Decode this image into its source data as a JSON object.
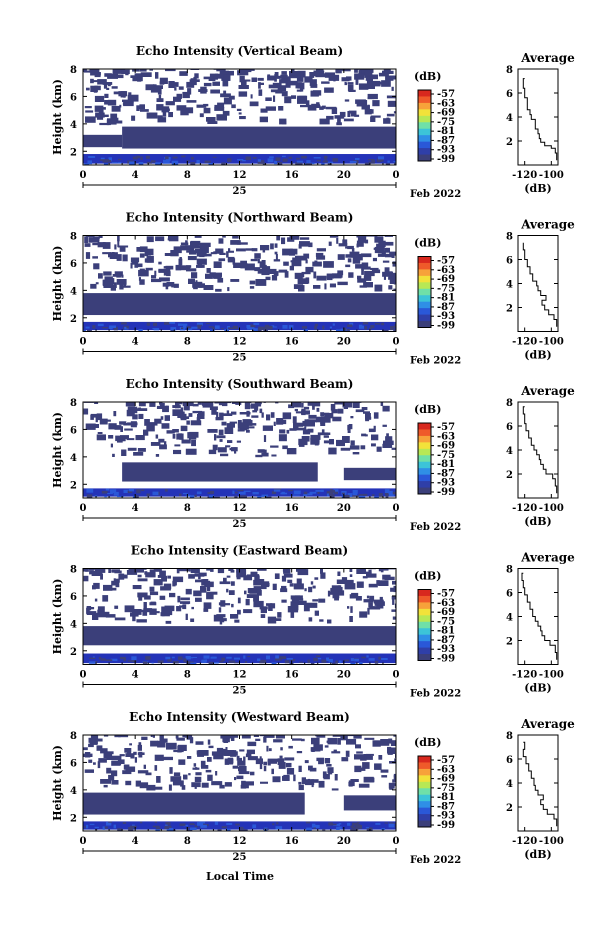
{
  "colors": {
    "background": "#ffffff",
    "echo": "#3b3f7a",
    "echo_strong": "#2433b8",
    "colorbar": [
      "#3b3f7a",
      "#2f3fa8",
      "#2a58d8",
      "#2f8fe6",
      "#3cc4d8",
      "#6fe0a8",
      "#b8e855",
      "#f2e23a",
      "#f7a23a",
      "#ef5a2a",
      "#d8281e"
    ]
  },
  "colorbar": {
    "unit": "(dB)",
    "ticks": [
      "-57",
      "-63",
      "-69",
      "-75",
      "-81",
      "-87",
      "-93",
      "-99"
    ]
  },
  "date_label": "Feb 2022",
  "day_label": "25",
  "xlabel": "Local Time",
  "chart_data": [
    {
      "type": "heatmap",
      "title": "Echo Intensity (Vertical Beam)",
      "ylabel": "Height (km)",
      "xlim": [
        0,
        24
      ],
      "ylim": [
        1,
        8
      ],
      "x_ticks": [
        "0",
        "4",
        "8",
        "12",
        "16",
        "20",
        "0"
      ],
      "y_ticks": [
        "2",
        "4",
        "6",
        "8"
      ],
      "layers": [
        {
          "x0": 0,
          "x1": 24,
          "y0": 1.1,
          "y1": 1.8,
          "level": "strong"
        },
        {
          "x0": 3,
          "x1": 24,
          "y0": 2.2,
          "y1": 3.8,
          "level": "weak"
        },
        {
          "x0": 0,
          "x1": 3,
          "y0": 2.3,
          "y1": 3.2,
          "level": "weak"
        }
      ],
      "profile": {
        "title": "Average",
        "xlabel": "(dB)",
        "xlim": [
          -125,
          -95
        ],
        "ylim": [
          0,
          8
        ],
        "x_ticks": [
          "-120",
          "-100"
        ],
        "y_ticks": [
          "2",
          "4",
          "6",
          "8"
        ],
        "x": [
          -96,
          -97,
          -100,
          -105,
          -108,
          -109,
          -110,
          -112,
          -112,
          -115,
          -116,
          -118,
          -118,
          -120,
          -121,
          -120
        ],
        "y": [
          0.4,
          1.0,
          1.4,
          1.6,
          1.9,
          2.2,
          2.6,
          3.0,
          3.4,
          3.8,
          4.2,
          4.6,
          5.0,
          5.6,
          6.4,
          7.2
        ]
      }
    },
    {
      "type": "heatmap",
      "title": "Echo Intensity (Northward Beam)",
      "ylabel": "Height (km)",
      "xlim": [
        0,
        24
      ],
      "ylim": [
        1,
        8
      ],
      "x_ticks": [
        "0",
        "4",
        "8",
        "12",
        "16",
        "20",
        "0"
      ],
      "y_ticks": [
        "2",
        "4",
        "6",
        "8"
      ],
      "layers": [
        {
          "x0": 0,
          "x1": 24,
          "y0": 1.1,
          "y1": 1.7,
          "level": "strong"
        },
        {
          "x0": 0,
          "x1": 24,
          "y0": 2.2,
          "y1": 3.8,
          "level": "weak"
        }
      ],
      "profile": {
        "title": "Average",
        "xlabel": "(dB)",
        "xlim": [
          -125,
          -95
        ],
        "ylim": [
          0,
          8
        ],
        "x_ticks": [
          "-120",
          "-100"
        ],
        "y_ticks": [
          "2",
          "4",
          "6",
          "8"
        ],
        "x": [
          -96,
          -98,
          -102,
          -105,
          -107,
          -104,
          -108,
          -110,
          -111,
          -114,
          -116,
          -118,
          -120,
          -121,
          -121
        ],
        "y": [
          0.4,
          1.0,
          1.4,
          1.8,
          2.2,
          2.6,
          3.0,
          3.4,
          3.8,
          4.2,
          4.8,
          5.4,
          6.0,
          6.8,
          7.4
        ]
      }
    },
    {
      "type": "heatmap",
      "title": "Echo Intensity (Southward Beam)",
      "ylabel": "Height (km)",
      "xlim": [
        0,
        24
      ],
      "ylim": [
        1,
        8
      ],
      "x_ticks": [
        "0",
        "4",
        "8",
        "12",
        "16",
        "20",
        "0"
      ],
      "y_ticks": [
        "2",
        "4",
        "6",
        "8"
      ],
      "layers": [
        {
          "x0": 0,
          "x1": 24,
          "y0": 1.1,
          "y1": 1.7,
          "level": "strong"
        },
        {
          "x0": 3,
          "x1": 18,
          "y0": 2.2,
          "y1": 3.6,
          "level": "weak"
        },
        {
          "x0": 20,
          "x1": 24,
          "y0": 2.3,
          "y1": 3.2,
          "level": "weak"
        }
      ],
      "profile": {
        "title": "Average",
        "xlabel": "(dB)",
        "xlim": [
          -125,
          -95
        ],
        "ylim": [
          0,
          8
        ],
        "x_ticks": [
          "-120",
          "-100"
        ],
        "y_ticks": [
          "2",
          "4",
          "6",
          "8"
        ],
        "x": [
          -96,
          -97,
          -99,
          -104,
          -106,
          -108,
          -109,
          -111,
          -113,
          -115,
          -117,
          -119,
          -120,
          -121,
          -120
        ],
        "y": [
          0.4,
          1.0,
          1.6,
          2.0,
          2.4,
          2.8,
          3.2,
          3.6,
          4.0,
          4.4,
          5.0,
          5.6,
          6.2,
          7.0,
          7.6
        ]
      }
    },
    {
      "type": "heatmap",
      "title": "Echo Intensity (Eastward Beam)",
      "ylabel": "Height (km)",
      "xlim": [
        0,
        24
      ],
      "ylim": [
        1,
        8
      ],
      "x_ticks": [
        "0",
        "4",
        "8",
        "12",
        "16",
        "20",
        "0"
      ],
      "y_ticks": [
        "2",
        "4",
        "6",
        "8"
      ],
      "layers": [
        {
          "x0": 0,
          "x1": 24,
          "y0": 1.1,
          "y1": 1.8,
          "level": "strong"
        },
        {
          "x0": 0,
          "x1": 24,
          "y0": 2.4,
          "y1": 3.8,
          "level": "weak"
        }
      ],
      "profile": {
        "title": "Average",
        "xlabel": "(dB)",
        "xlim": [
          -125,
          -95
        ],
        "ylim": [
          0,
          8
        ],
        "x_ticks": [
          "-120",
          "-100"
        ],
        "y_ticks": [
          "2",
          "4",
          "6",
          "8"
        ],
        "x": [
          -96,
          -97,
          -101,
          -105,
          -107,
          -108,
          -110,
          -112,
          -114,
          -116,
          -118,
          -120,
          -121,
          -122,
          -121
        ],
        "y": [
          0.4,
          1.0,
          1.6,
          2.0,
          2.4,
          2.8,
          3.2,
          3.6,
          4.0,
          4.6,
          5.2,
          5.8,
          6.4,
          7.0,
          7.6
        ]
      }
    },
    {
      "type": "heatmap",
      "title": "Echo Intensity (Westward Beam)",
      "ylabel": "Height (km)",
      "xlim": [
        0,
        24
      ],
      "ylim": [
        1,
        8
      ],
      "x_ticks": [
        "0",
        "4",
        "8",
        "12",
        "16",
        "20",
        "0"
      ],
      "y_ticks": [
        "2",
        "4",
        "6",
        "8"
      ],
      "layers": [
        {
          "x0": 0,
          "x1": 24,
          "y0": 1.1,
          "y1": 1.7,
          "level": "strong"
        },
        {
          "x0": 0,
          "x1": 17,
          "y0": 2.2,
          "y1": 3.8,
          "level": "weak"
        },
        {
          "x0": 20,
          "x1": 24,
          "y0": 2.5,
          "y1": 3.6,
          "level": "weak"
        }
      ],
      "profile": {
        "title": "Average",
        "xlabel": "(dB)",
        "xlim": [
          -125,
          -95
        ],
        "ylim": [
          0,
          8
        ],
        "x_ticks": [
          "-120",
          "-100"
        ],
        "y_ticks": [
          "2",
          "4",
          "6",
          "8"
        ],
        "x": [
          -96,
          -98,
          -103,
          -106,
          -108,
          -106,
          -110,
          -112,
          -113,
          -115,
          -117,
          -119,
          -121,
          -120,
          -121
        ],
        "y": [
          0.4,
          1.0,
          1.4,
          1.8,
          2.2,
          2.6,
          3.0,
          3.4,
          3.8,
          4.4,
          5.0,
          5.6,
          6.2,
          6.8,
          7.4
        ]
      }
    }
  ]
}
